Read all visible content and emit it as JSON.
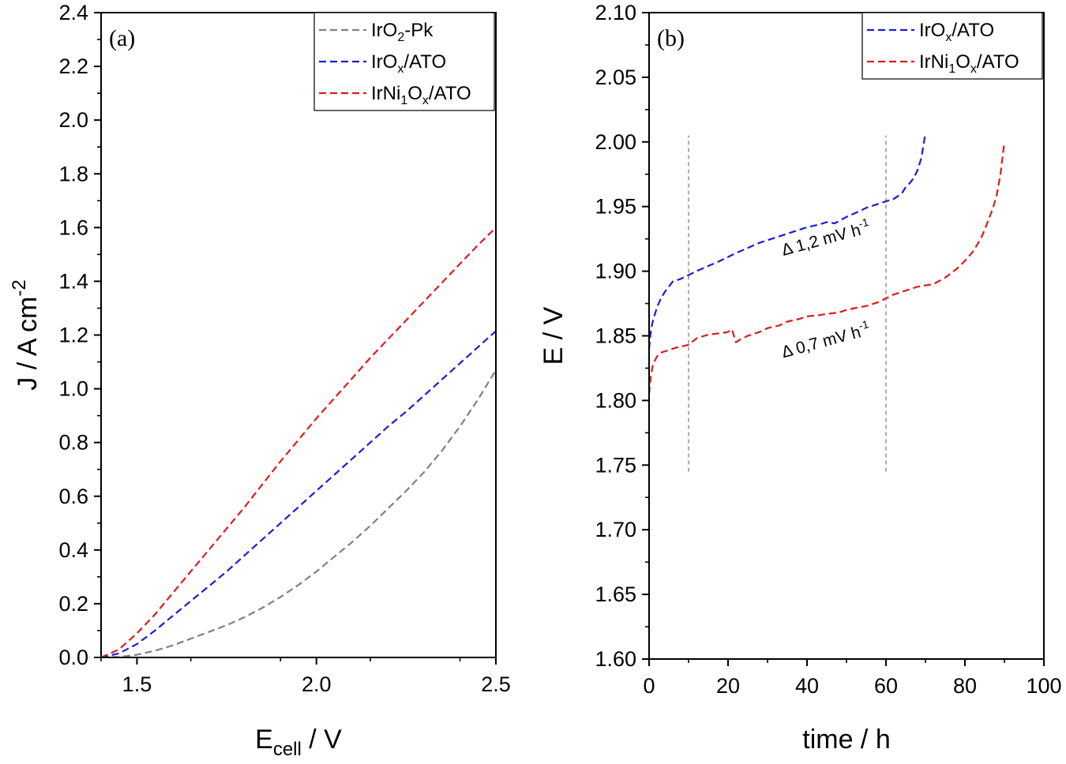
{
  "chart_data": [
    {
      "type": "line",
      "panel_label": "(a)",
      "xlabel": {
        "main": "E",
        "sub": "cell",
        "rest": " / V"
      },
      "ylabel": {
        "main": "J / A cm",
        "sup": "-2"
      },
      "xlim": [
        1.4,
        2.5
      ],
      "ylim": [
        0.0,
        2.4
      ],
      "x_ticks": [
        1.5,
        2.0,
        2.5
      ],
      "x_tick_labels": [
        "1.5",
        "2.0",
        "2.5"
      ],
      "y_ticks": [
        0.0,
        0.2,
        0.4,
        0.6,
        0.8,
        1.0,
        1.2,
        1.4,
        1.6,
        1.8,
        2.0,
        2.2,
        2.4
      ],
      "y_tick_labels": [
        "0.0",
        "0.2",
        "0.4",
        "0.6",
        "0.8",
        "1.0",
        "1.2",
        "1.4",
        "1.6",
        "1.8",
        "2.0",
        "2.2",
        "2.4"
      ],
      "legend_position": "top-right",
      "grid": false,
      "series": [
        {
          "legend": {
            "a": "IrO",
            "sub": "2",
            "b": "-Pk"
          },
          "color": "#808080",
          "x": [
            1.4,
            1.45,
            1.5,
            1.55,
            1.6,
            1.65,
            1.7,
            1.75,
            1.8,
            1.85,
            1.9,
            1.95,
            2.0,
            2.05,
            2.1,
            2.15,
            2.2,
            2.25,
            2.3,
            2.35,
            2.4,
            2.45,
            2.5
          ],
          "y": [
            0.0,
            0.002,
            0.01,
            0.025,
            0.045,
            0.07,
            0.095,
            0.12,
            0.15,
            0.185,
            0.225,
            0.27,
            0.32,
            0.375,
            0.43,
            0.49,
            0.555,
            0.62,
            0.69,
            0.77,
            0.86,
            0.96,
            1.07
          ]
        },
        {
          "legend": {
            "a": "IrO",
            "sub": "x",
            "b": "/ATO"
          },
          "color": "#1c1cd9",
          "x": [
            1.4,
            1.45,
            1.5,
            1.55,
            1.6,
            1.65,
            1.7,
            1.75,
            1.8,
            1.85,
            1.9,
            1.95,
            2.0,
            2.05,
            2.1,
            2.15,
            2.2,
            2.25,
            2.3,
            2.35,
            2.4,
            2.45,
            2.5
          ],
          "y": [
            0.0,
            0.015,
            0.05,
            0.1,
            0.155,
            0.21,
            0.265,
            0.32,
            0.38,
            0.44,
            0.5,
            0.56,
            0.62,
            0.68,
            0.74,
            0.8,
            0.86,
            0.915,
            0.975,
            1.035,
            1.095,
            1.155,
            1.215
          ]
        },
        {
          "legend": {
            "a": "IrNi",
            "sub": "1",
            "b": "O",
            "sub2": "x",
            "c": "/ATO"
          },
          "color": "#e01a1a",
          "x": [
            1.4,
            1.45,
            1.5,
            1.55,
            1.6,
            1.65,
            1.7,
            1.75,
            1.8,
            1.85,
            1.9,
            1.95,
            2.0,
            2.05,
            2.1,
            2.15,
            2.2,
            2.25,
            2.3,
            2.35,
            2.4,
            2.45,
            2.5
          ],
          "y": [
            0.0,
            0.03,
            0.09,
            0.16,
            0.24,
            0.32,
            0.4,
            0.48,
            0.56,
            0.645,
            0.73,
            0.81,
            0.89,
            0.965,
            1.04,
            1.115,
            1.185,
            1.255,
            1.325,
            1.395,
            1.465,
            1.535,
            1.6
          ]
        }
      ]
    },
    {
      "type": "line",
      "panel_label": "(b)",
      "xlabel": {
        "main": "time / h"
      },
      "ylabel": {
        "main": "E / V"
      },
      "xlim": [
        0,
        100
      ],
      "ylim": [
        1.6,
        2.1
      ],
      "x_ticks": [
        0,
        20,
        40,
        60,
        80,
        100
      ],
      "x_tick_labels": [
        "0",
        "20",
        "40",
        "60",
        "80",
        "100"
      ],
      "y_ticks": [
        1.6,
        1.65,
        1.7,
        1.75,
        1.8,
        1.85,
        1.9,
        1.95,
        2.0,
        2.05,
        2.1
      ],
      "y_tick_labels": [
        "1.60",
        "1.65",
        "1.70",
        "1.75",
        "1.80",
        "1.85",
        "1.90",
        "1.95",
        "2.00",
        "2.05",
        "2.10"
      ],
      "legend_position": "top-right",
      "grid": false,
      "reference_lines_x": [
        10,
        60
      ],
      "reference_line_range": [
        1.745,
        2.005
      ],
      "annotations": [
        {
          "text": "Δ 1,2 mV h",
          "sup": "-1",
          "x": 34,
          "y": 1.912,
          "angle": -15,
          "color": "#000000"
        },
        {
          "text": "Δ 0,7 mV h",
          "sup": "-1",
          "x": 34,
          "y": 1.833,
          "angle": -15,
          "color": "#000000"
        }
      ],
      "series": [
        {
          "legend": {
            "a": "IrO",
            "sub": "x",
            "b": "/ATO"
          },
          "color": "#1c1cd9",
          "x": [
            0,
            0.5,
            1,
            2,
            3,
            4,
            5,
            6,
            8,
            10,
            12,
            15,
            18,
            20,
            22,
            25,
            28,
            30,
            33,
            35,
            38,
            40,
            43,
            45,
            47,
            50,
            53,
            55,
            57,
            60,
            62,
            64,
            65,
            66,
            67,
            68,
            69,
            70
          ],
          "y": [
            1.84,
            1.855,
            1.862,
            1.872,
            1.879,
            1.884,
            1.888,
            1.892,
            1.894,
            1.897,
            1.9,
            1.904,
            1.908,
            1.911,
            1.914,
            1.918,
            1.922,
            1.924,
            1.927,
            1.929,
            1.932,
            1.934,
            1.936,
            1.938,
            1.937,
            1.942,
            1.946,
            1.949,
            1.951,
            1.954,
            1.956,
            1.96,
            1.965,
            1.968,
            1.972,
            1.978,
            1.988,
            2.007
          ]
        },
        {
          "legend": {
            "a": "IrNi",
            "sub": "1",
            "b": "O",
            "sub2": "x",
            "c": "/ATO"
          },
          "color": "#e01a1a",
          "x": [
            0,
            0.5,
            1,
            2,
            3,
            5,
            7,
            10,
            12,
            15,
            18,
            20,
            21,
            22,
            23,
            25,
            28,
            30,
            33,
            35,
            38,
            40,
            43,
            45,
            48,
            50,
            53,
            55,
            58,
            60,
            62,
            65,
            68,
            70,
            72,
            75,
            78,
            80,
            82,
            84,
            85,
            86,
            87,
            88,
            89,
            90
          ],
          "y": [
            1.805,
            1.82,
            1.828,
            1.834,
            1.837,
            1.839,
            1.841,
            1.843,
            1.848,
            1.851,
            1.852,
            1.853,
            1.855,
            1.845,
            1.847,
            1.85,
            1.853,
            1.856,
            1.858,
            1.861,
            1.863,
            1.865,
            1.866,
            1.867,
            1.868,
            1.87,
            1.872,
            1.873,
            1.876,
            1.879,
            1.882,
            1.885,
            1.888,
            1.889,
            1.89,
            1.895,
            1.902,
            1.908,
            1.915,
            1.925,
            1.932,
            1.94,
            1.948,
            1.958,
            1.975,
            2.0
          ]
        }
      ]
    }
  ]
}
